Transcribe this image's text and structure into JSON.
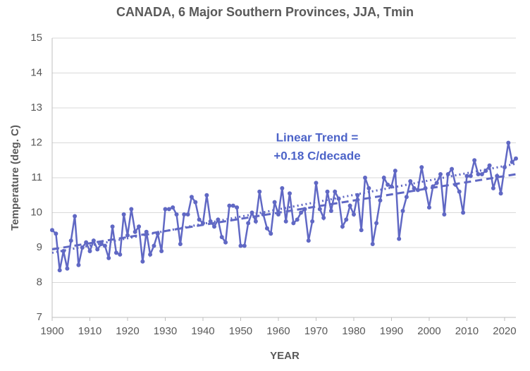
{
  "chart_data": {
    "type": "line",
    "title": "CANADA, 6 Major Southern Provinces, JJA, Tmin",
    "xlabel": "YEAR",
    "ylabel": "Temperature (deg. C)",
    "annotation": [
      "Linear Trend =",
      "+0.18 C/decade"
    ],
    "xlim": [
      1900,
      2023
    ],
    "xticks": [
      1900,
      1910,
      1920,
      1930,
      1940,
      1950,
      1960,
      1970,
      1980,
      1990,
      2000,
      2010,
      2020
    ],
    "ylim": [
      7,
      15
    ],
    "yticks": [
      7,
      8,
      9,
      10,
      11,
      12,
      13,
      14,
      15
    ],
    "grid": true,
    "x": [
      1900,
      1901,
      1902,
      1903,
      1904,
      1905,
      1906,
      1907,
      1908,
      1909,
      1910,
      1911,
      1912,
      1913,
      1914,
      1915,
      1916,
      1917,
      1918,
      1919,
      1920,
      1921,
      1922,
      1923,
      1924,
      1925,
      1926,
      1927,
      1928,
      1929,
      1930,
      1931,
      1932,
      1933,
      1934,
      1935,
      1936,
      1937,
      1938,
      1939,
      1940,
      1941,
      1942,
      1943,
      1944,
      1945,
      1946,
      1947,
      1948,
      1949,
      1950,
      1951,
      1952,
      1953,
      1954,
      1955,
      1956,
      1957,
      1958,
      1959,
      1960,
      1961,
      1962,
      1963,
      1964,
      1965,
      1966,
      1967,
      1968,
      1969,
      1970,
      1971,
      1972,
      1973,
      1974,
      1975,
      1976,
      1977,
      1978,
      1979,
      1980,
      1981,
      1982,
      1983,
      1984,
      1985,
      1986,
      1987,
      1988,
      1989,
      1990,
      1991,
      1992,
      1993,
      1994,
      1995,
      1996,
      1997,
      1998,
      1999,
      2000,
      2001,
      2002,
      2003,
      2004,
      2005,
      2006,
      2007,
      2008,
      2009,
      2010,
      2011,
      2012,
      2013,
      2014,
      2015,
      2016,
      2017,
      2018,
      2019,
      2020,
      2021,
      2022,
      2023
    ],
    "series": [
      {
        "color": "#6068c4",
        "values": [
          9.5,
          9.4,
          8.35,
          8.9,
          8.4,
          9.2,
          9.9,
          8.5,
          9.0,
          9.15,
          8.9,
          9.2,
          8.95,
          9.1,
          9.05,
          8.7,
          9.6,
          8.85,
          8.8,
          9.95,
          9.35,
          10.1,
          9.45,
          9.6,
          8.6,
          9.45,
          8.8,
          9.05,
          9.4,
          8.9,
          10.1,
          10.1,
          10.15,
          9.95,
          9.1,
          9.95,
          9.95,
          10.45,
          10.3,
          9.8,
          9.7,
          10.5,
          9.75,
          9.6,
          9.8,
          9.3,
          9.15,
          10.2,
          10.2,
          10.15,
          9.05,
          9.05,
          9.7,
          10.0,
          9.75,
          10.6,
          9.95,
          9.55,
          9.4,
          10.3,
          9.95,
          10.7,
          9.75,
          10.55,
          9.7,
          9.8,
          10.0,
          10.1,
          9.2,
          9.75,
          10.85,
          10.1,
          9.85,
          10.6,
          10.05,
          10.6,
          10.4,
          9.6,
          9.8,
          10.2,
          9.95,
          10.5,
          9.5,
          11.0,
          10.7,
          9.1,
          9.7,
          10.35,
          11.0,
          10.8,
          10.75,
          11.2,
          9.25,
          10.05,
          10.45,
          10.9,
          10.7,
          10.65,
          11.3,
          10.7,
          10.15,
          10.75,
          10.85,
          11.1,
          9.95,
          11.1,
          11.25,
          10.8,
          10.6,
          10.0,
          11.05,
          11.05,
          11.5,
          11.1,
          11.1,
          11.2,
          11.35,
          10.7,
          11.05,
          10.55,
          11.3,
          12.0,
          11.45,
          11.55
        ]
      }
    ],
    "trend_lines": [
      {
        "style": "dashed",
        "x": [
          1900,
          2023
        ],
        "values": [
          8.95,
          11.1
        ]
      },
      {
        "style": "dotted",
        "x": [
          1900,
          2023
        ],
        "values": [
          8.85,
          11.4
        ]
      }
    ]
  }
}
